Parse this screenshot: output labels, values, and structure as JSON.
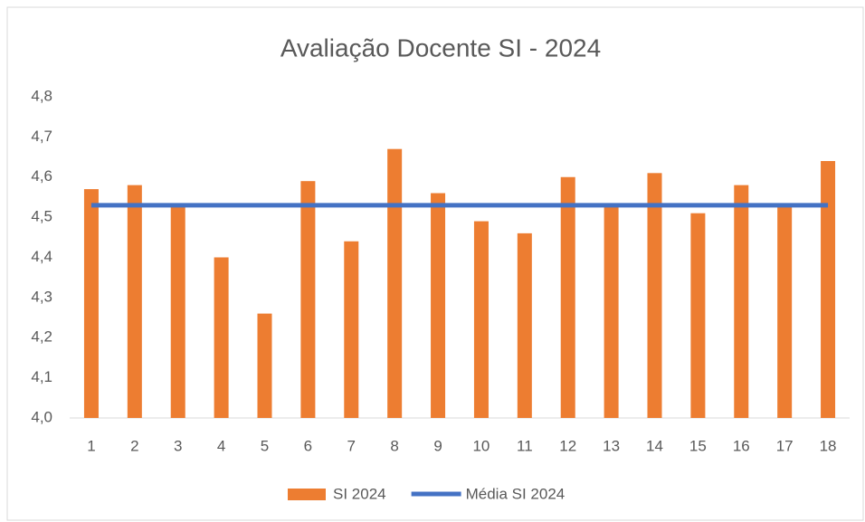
{
  "chart_data": {
    "type": "bar+line",
    "title": "Avaliação Docente SI - 2024",
    "categories": [
      "1",
      "2",
      "3",
      "4",
      "5",
      "6",
      "7",
      "8",
      "9",
      "10",
      "11",
      "12",
      "13",
      "14",
      "15",
      "16",
      "17",
      "18"
    ],
    "series": [
      {
        "name": "SI 2024",
        "type": "bar",
        "color": "#ed7d31",
        "values": [
          4.57,
          4.58,
          4.53,
          4.4,
          4.26,
          4.59,
          4.44,
          4.67,
          4.56,
          4.49,
          4.46,
          4.6,
          4.53,
          4.61,
          4.51,
          4.58,
          4.53,
          4.64
        ]
      },
      {
        "name": "Média SI 2024",
        "type": "line",
        "color": "#4472c4",
        "values": [
          4.53,
          4.53,
          4.53,
          4.53,
          4.53,
          4.53,
          4.53,
          4.53,
          4.53,
          4.53,
          4.53,
          4.53,
          4.53,
          4.53,
          4.53,
          4.53,
          4.53,
          4.53
        ]
      }
    ],
    "ylim": [
      4.0,
      4.8
    ],
    "yticks": [
      {
        "value": 4.0,
        "label": "4,0"
      },
      {
        "value": 4.1,
        "label": "4,1"
      },
      {
        "value": 4.2,
        "label": "4,2"
      },
      {
        "value": 4.3,
        "label": "4,3"
      },
      {
        "value": 4.4,
        "label": "4,4"
      },
      {
        "value": 4.5,
        "label": "4,5"
      },
      {
        "value": 4.6,
        "label": "4,6"
      },
      {
        "value": 4.7,
        "label": "4,7"
      },
      {
        "value": 4.8,
        "label": "4,8"
      }
    ],
    "grid": false,
    "legend": "bottom"
  }
}
